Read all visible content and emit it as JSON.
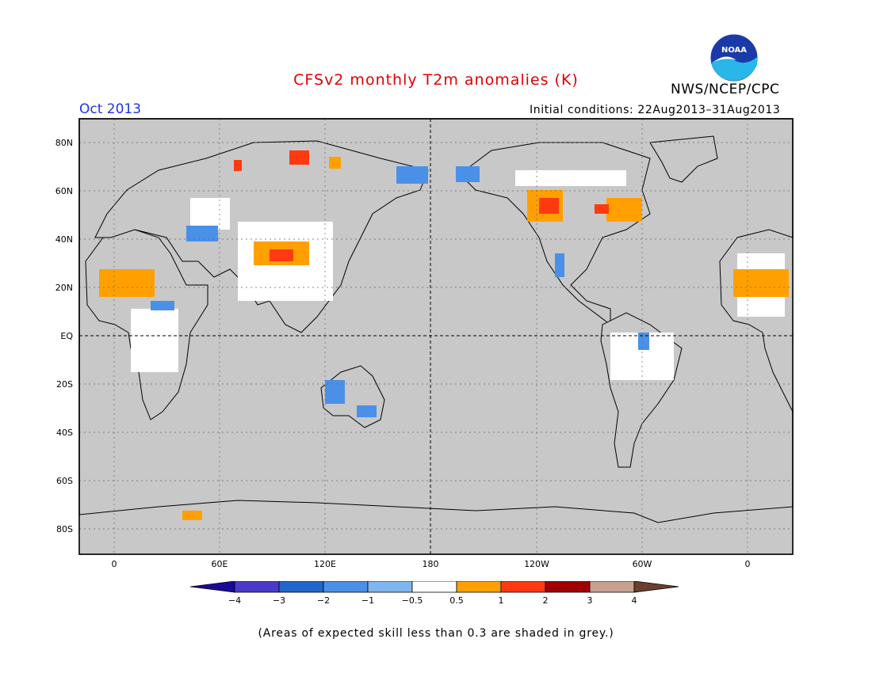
{
  "title": "CFSv2 monthly T2m anomalies (K)",
  "month": "Oct 2013",
  "agency": "NWS/NCEP/CPC",
  "initial_conditions": "Initial conditions: 22Aug2013–31Aug2013",
  "logo_text": "NOAA",
  "lat_labels": [
    "80N",
    "60N",
    "40N",
    "20N",
    "EQ",
    "20S",
    "40S",
    "60S",
    "80S"
  ],
  "lon_labels": [
    "0",
    "60E",
    "120E",
    "180",
    "120W",
    "60W",
    "0"
  ],
  "colorbar": {
    "labels": [
      "−4",
      "−3",
      "−2",
      "−1",
      "−0.5",
      "0.5",
      "1",
      "2",
      "3",
      "4"
    ],
    "colors": [
      "#1a0a9a",
      "#4a3acc",
      "#2266cc",
      "#4a90e8",
      "#7fb6f0",
      "#ffffff",
      "#ffa000",
      "#ff3a10",
      "#a00000",
      "#c8a090",
      "#6a4030"
    ]
  },
  "footnote": "(Areas of expected skill less than 0.3 are shaded in grey.)",
  "colors": {
    "title": "#e00000",
    "month": "#2233dd",
    "map_background": "#c8c8c8",
    "no_anomaly": "#ffffff"
  }
}
